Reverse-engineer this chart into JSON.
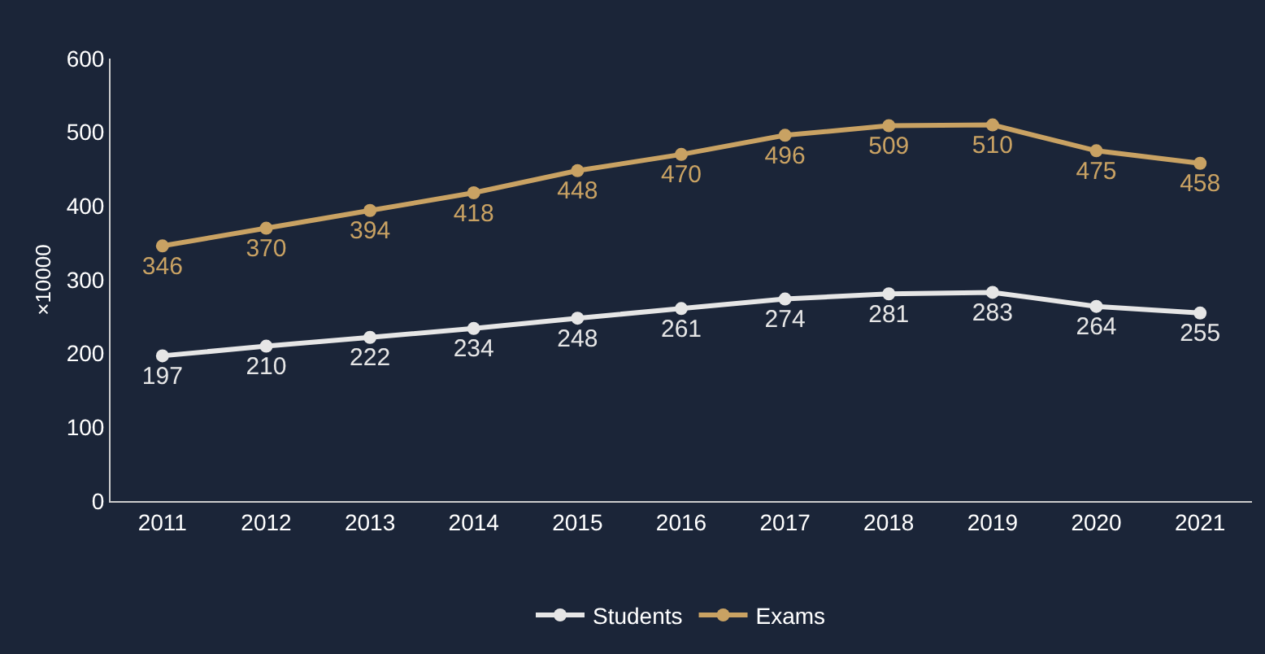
{
  "chart_data": {
    "type": "line",
    "ylabel": "×10000",
    "categories": [
      "2011",
      "2012",
      "2013",
      "2014",
      "2015",
      "2016",
      "2017",
      "2018",
      "2019",
      "2020",
      "2021"
    ],
    "series": [
      {
        "name": "Students",
        "color": "#e6e6e6",
        "values": [
          197,
          210,
          222,
          234,
          248,
          261,
          274,
          281,
          283,
          264,
          255
        ]
      },
      {
        "name": "Exams",
        "color": "#c9a263",
        "values": [
          346,
          370,
          394,
          418,
          448,
          470,
          496,
          509,
          510,
          475,
          458
        ]
      }
    ],
    "ylim": [
      0,
      600
    ],
    "yticks": [
      0,
      100,
      200,
      300,
      400,
      500,
      600
    ],
    "grid": false,
    "legend": "bottom",
    "marker": "circle",
    "line_style": "solid",
    "data_labels": true
  }
}
